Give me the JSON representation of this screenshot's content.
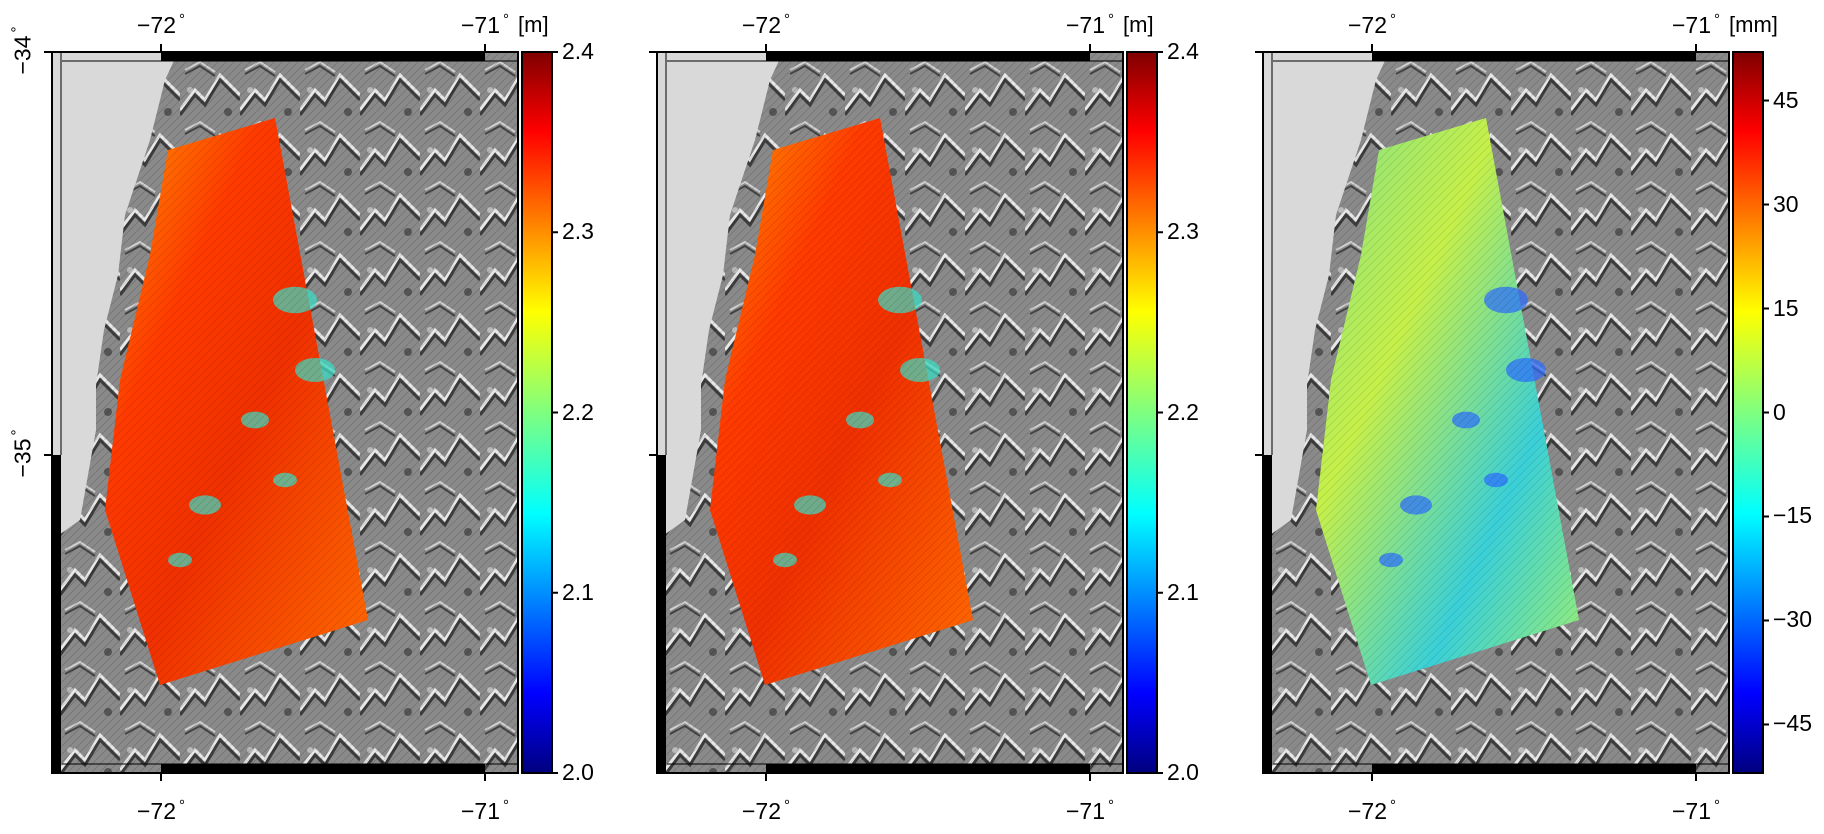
{
  "panels": [
    {
      "id": "panel-1",
      "unit": "[m]",
      "lon_top": [
        "−72",
        "−71"
      ],
      "lon_bottom": [
        "−72",
        "−71"
      ],
      "lat_left": [
        "−34",
        "−35"
      ],
      "colorbar": {
        "min": 2.0,
        "max": 2.4,
        "ticks": [
          "2.4",
          "2.3",
          "2.2",
          "2.1",
          "2.0"
        ]
      },
      "field": "height",
      "show_lat_labels": true
    },
    {
      "id": "panel-2",
      "unit": "[m]",
      "lon_top": [
        "−72",
        "−71"
      ],
      "lon_bottom": [
        "−72",
        "−71"
      ],
      "lat_left": [],
      "colorbar": {
        "min": 2.0,
        "max": 2.4,
        "ticks": [
          "2.4",
          "2.3",
          "2.2",
          "2.1",
          "2.0"
        ]
      },
      "field": "height",
      "show_lat_labels": false
    },
    {
      "id": "panel-3",
      "unit": "[mm]",
      "lon_top": [
        "−72",
        "−71"
      ],
      "lon_bottom": [
        "−72",
        "−71"
      ],
      "lat_left": [],
      "colorbar": {
        "min": -52,
        "max": 52,
        "ticks": [
          "45",
          "30",
          "15",
          "0",
          "−15",
          "−30",
          "−45"
        ],
        "tick_values": [
          45,
          30,
          15,
          0,
          -15,
          -30,
          -45
        ]
      },
      "field": "difference",
      "show_lat_labels": false
    }
  ],
  "colors": {
    "ocean": "#d9d9d9",
    "frame": "#000000",
    "jet": [
      "#00007f",
      "#0000ff",
      "#007fff",
      "#00ffff",
      "#7fff7f",
      "#ffff00",
      "#ff7f00",
      "#ff0000",
      "#7f0000"
    ]
  }
}
